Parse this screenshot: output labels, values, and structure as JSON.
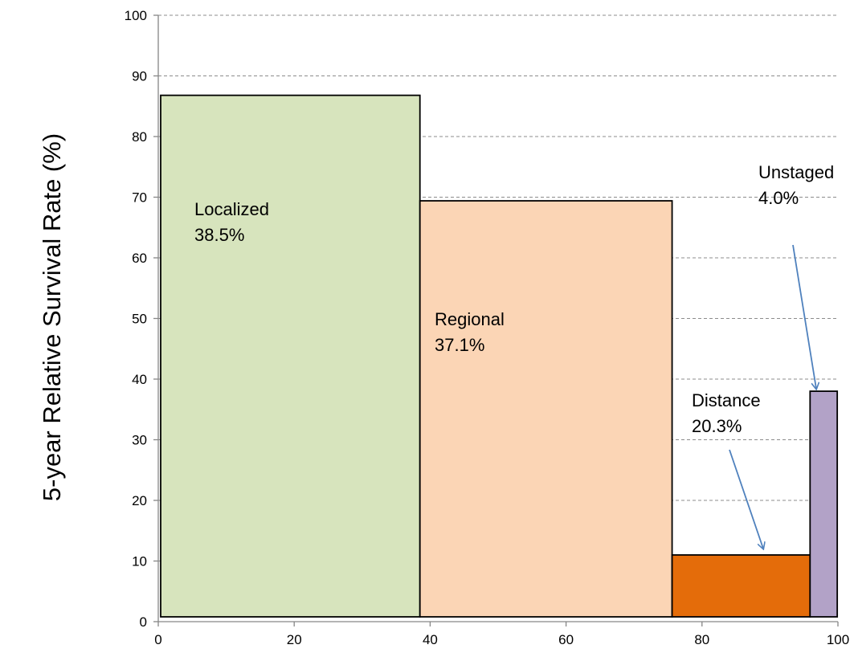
{
  "chart_data": {
    "type": "bar",
    "title": "",
    "xlabel": "",
    "ylabel": "5-year Relative Survival Rate (%)",
    "xlim": [
      0,
      100
    ],
    "ylim": [
      0,
      100
    ],
    "x_ticks": [
      0,
      20,
      40,
      60,
      80,
      100
    ],
    "y_ticks": [
      0,
      10,
      20,
      30,
      40,
      50,
      60,
      70,
      80,
      90,
      100
    ],
    "grid": true,
    "bars": [
      {
        "name": "Localized",
        "share_label": "38.5%",
        "x_start": 0,
        "x_end": 38.5,
        "value": 86.8,
        "color": "#d7e4bd"
      },
      {
        "name": "Regional",
        "share_label": "37.1%",
        "x_start": 38.5,
        "x_end": 75.6,
        "value": 69.4,
        "color": "#fbd5b5"
      },
      {
        "name": "Distance",
        "share_label": "20.3%",
        "x_start": 75.6,
        "x_end": 95.9,
        "value": 11.0,
        "color": "#e46c0a"
      },
      {
        "name": "Unstaged",
        "share_label": "4.0%",
        "x_start": 95.9,
        "x_end": 99.9,
        "value": 38.0,
        "color": "#b2a2c7"
      }
    ]
  }
}
